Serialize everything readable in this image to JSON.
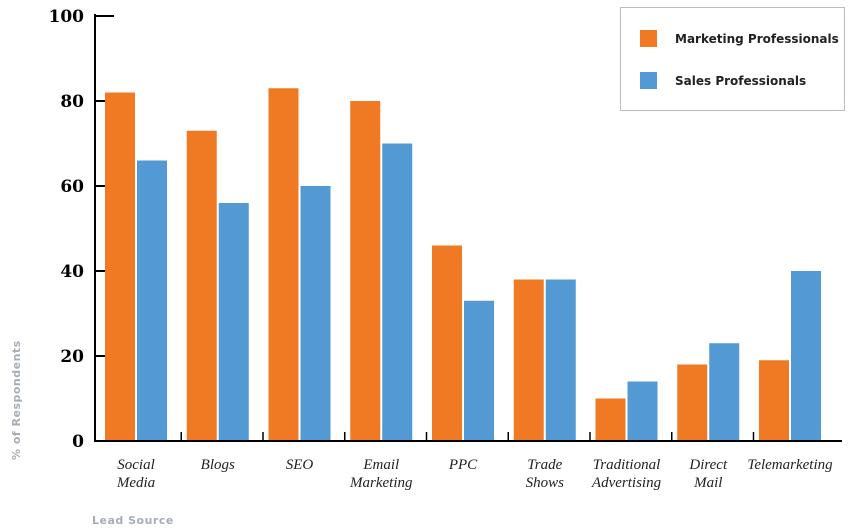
{
  "chart_data": {
    "type": "bar",
    "title": "",
    "xlabel": "Lead Source",
    "ylabel": "% of Respondents",
    "ylim": [
      0,
      100
    ],
    "yticks": [
      0,
      20,
      40,
      60,
      80,
      100
    ],
    "grid": false,
    "legend_position": "top-right",
    "categories": [
      [
        "Social",
        "Media"
      ],
      [
        "Blogs"
      ],
      [
        "SEO"
      ],
      [
        "Email",
        "Marketing"
      ],
      [
        "PPC"
      ],
      [
        "Trade",
        "Shows"
      ],
      [
        "Traditional",
        "Advertising"
      ],
      [
        "Direct",
        "Mail"
      ],
      [
        "Telemarketing"
      ]
    ],
    "series": [
      {
        "name": "Marketing Professionals",
        "color": "#f07a23",
        "values": [
          82,
          73,
          83,
          80,
          46,
          38,
          10,
          18,
          19
        ]
      },
      {
        "name": "Sales Professionals",
        "color": "#5399d3",
        "values": [
          66,
          56,
          60,
          70,
          33,
          38,
          14,
          23,
          40
        ]
      }
    ]
  }
}
